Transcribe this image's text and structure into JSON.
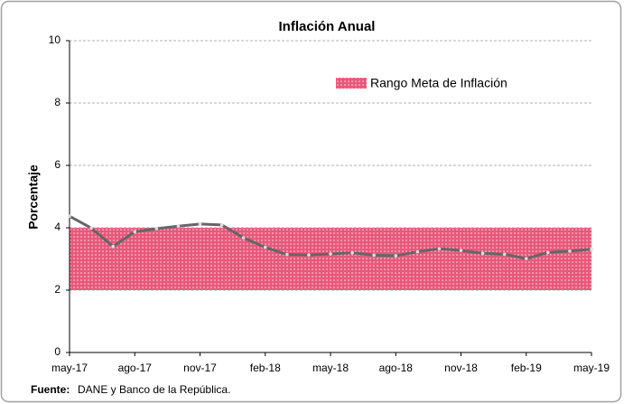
{
  "chart_data": {
    "type": "line",
    "title": "Inflación Anual",
    "y_label": "Porcentaje",
    "categories": [
      "may-17",
      null,
      null,
      "ago-17",
      null,
      null,
      "nov-17",
      null,
      null,
      "feb-18",
      null,
      null,
      "may-18",
      null,
      null,
      "ago-18",
      null,
      null,
      "nov-18",
      null,
      null,
      "feb-19",
      null,
      null,
      "may-19"
    ],
    "series": [
      {
        "name": "Inflación anual",
        "color": "#666666",
        "values": [
          4.37,
          3.99,
          3.4,
          3.87,
          3.97,
          4.05,
          4.12,
          4.09,
          3.68,
          3.37,
          3.14,
          3.13,
          3.16,
          3.2,
          3.12,
          3.1,
          3.23,
          3.33,
          3.27,
          3.18,
          3.15,
          3.01,
          3.21,
          3.25,
          3.31
        ]
      }
    ],
    "band": {
      "name": "Rango Meta de Inflación",
      "lower": 2,
      "upper": 4,
      "color": "#e8587a"
    },
    "ylim": [
      0,
      10
    ],
    "yticks": [
      0,
      2,
      4,
      6,
      8,
      10
    ],
    "grid": true,
    "source_label": "Fuente:",
    "source_text": "DANE y Banco de la República."
  }
}
